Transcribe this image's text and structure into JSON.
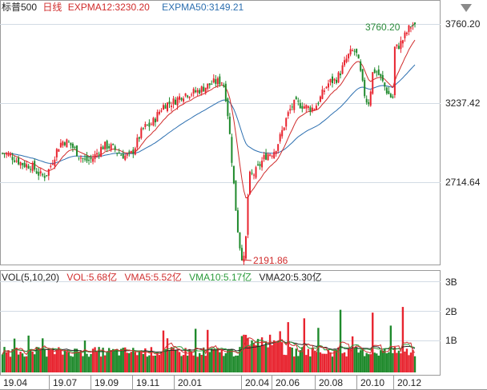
{
  "header": {
    "symbol": "标普500",
    "period": "日线",
    "exp12": "EXPMA12:3230.20",
    "exp50": "EXPMA50:3149.21"
  },
  "vol_header": {
    "params": "VOL(5,10,20)",
    "vol": "VOL:5.68亿",
    "vma5": "VMA5:5.52亿",
    "vma10": "VMA10:5.17亿",
    "vma20": "VMA20:5.30亿"
  },
  "price_axis": [
    "3760.20",
    "3237.42",
    "2714.64"
  ],
  "volume_axis": [
    "3B",
    "2B",
    "1B"
  ],
  "x_axis": [
    "19.04",
    "19.07",
    "19.09",
    "19.11",
    "20.01",
    "20.04",
    "20.06",
    "20.08",
    "20.10",
    "20.12"
  ],
  "annotations": {
    "high": "3760.20",
    "low": "2191.86"
  },
  "colors": {
    "up": "#e8242f",
    "down": "#1f8a2c",
    "exp12": "#d02b2b",
    "exp50": "#2c6fb0",
    "vma5": "#d03030",
    "vma10": "#2a9a3a",
    "vma20": "#222222",
    "grid": "#d2dbe4"
  },
  "chart_data": {
    "type": "candlestick",
    "title": "标普500 日线",
    "ylim": [
      2191.86,
      3760.2
    ],
    "series": [
      {
        "name": "EXPMA12",
        "last": 3230.2
      },
      {
        "name": "EXPMA50",
        "last": 3149.21
      }
    ],
    "anchors": [
      {
        "date": "2019-04",
        "close": 2900
      },
      {
        "date": "2019-05-10",
        "close": 2820
      },
      {
        "date": "2019-05-31",
        "close": 2750
      },
      {
        "date": "2019-07",
        "close": 2980
      },
      {
        "date": "2019-08-05",
        "close": 2850
      },
      {
        "date": "2019-09",
        "close": 2950
      },
      {
        "date": "2019-10-03",
        "close": 2880
      },
      {
        "date": "2019-11",
        "close": 3080
      },
      {
        "date": "2019-12",
        "close": 3230
      },
      {
        "date": "2020-01",
        "close": 3300
      },
      {
        "date": "2020-02-19",
        "close": 3380
      },
      {
        "date": "2020-03-23",
        "close": 2191.86
      },
      {
        "date": "2020-04",
        "close": 2750
      },
      {
        "date": "2020-05",
        "close": 2900
      },
      {
        "date": "2020-06-08",
        "close": 3230
      },
      {
        "date": "2020-07",
        "close": 3200
      },
      {
        "date": "2020-08",
        "close": 3380
      },
      {
        "date": "2020-09-02",
        "close": 3580
      },
      {
        "date": "2020-09-23",
        "close": 3240
      },
      {
        "date": "2020-10",
        "close": 3450
      },
      {
        "date": "2020-10-30",
        "close": 3270
      },
      {
        "date": "2020-11",
        "close": 3600
      },
      {
        "date": "2020-12",
        "close": 3760.2
      }
    ],
    "volume": {
      "unit": "B",
      "ylim": [
        0,
        3.2
      ],
      "last": 0.568,
      "spikes": [
        1.9,
        2.2,
        2.1,
        2.3
      ]
    }
  }
}
